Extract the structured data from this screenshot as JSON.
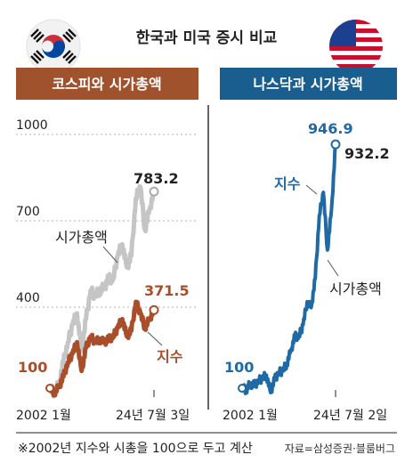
{
  "title": "한국과 미국 증시 비교",
  "footnote": "※2002년 지수와 시총을 100으로 두고 계산",
  "source": "자료=삼성증권·블룸버그",
  "colors": {
    "kr_band": "#a0522d",
    "us_band": "#1a5d8f",
    "kr_index": "#a84e2a",
    "kr_cap": "#c5c5c5",
    "us_line": "#1f6aa5",
    "dark_text": "#222222"
  },
  "chart_data": [
    {
      "type": "line",
      "title": "코스피와 시가총액",
      "flag": "south-korea-flag",
      "x_labels": [
        "2002 1월",
        "24년 7월 3일"
      ],
      "x": [
        "2002-01",
        "2003-01",
        "2004-01",
        "2005-01",
        "2006-01",
        "2007-01",
        "2008-01",
        "2009-01",
        "2010-01",
        "2011-01",
        "2012-01",
        "2013-01",
        "2014-01",
        "2015-01",
        "2016-01",
        "2017-01",
        "2018-01",
        "2019-01",
        "2020-01",
        "2021-01",
        "2022-01",
        "2023-01",
        "2024-01",
        "2024-07-03"
      ],
      "yticks": [
        1000,
        700,
        400
      ],
      "ylim": [
        100,
        1000
      ],
      "grid": false,
      "series": [
        {
          "name": "시가총액",
          "values": [
            100,
            85,
            115,
            190,
            260,
            320,
            360,
            230,
            340,
            440,
            420,
            440,
            450,
            480,
            480,
            560,
            600,
            520,
            560,
            760,
            800,
            650,
            720,
            783.2
          ],
          "end_label": "783.2"
        },
        {
          "name": "지수",
          "values": [
            100,
            85,
            105,
            140,
            190,
            220,
            260,
            160,
            240,
            280,
            260,
            270,
            260,
            270,
            280,
            310,
            340,
            280,
            300,
            400,
            360,
            310,
            340,
            371.5
          ],
          "end_label": "371.5"
        }
      ],
      "start_label": "100"
    },
    {
      "type": "line",
      "title": "나스닥과 시가총액",
      "flag": "us-flag",
      "x_labels": [
        "2002 1월",
        "24년 7월 2일"
      ],
      "x": [
        "2002-01",
        "2003-01",
        "2004-01",
        "2005-01",
        "2006-01",
        "2007-01",
        "2008-01",
        "2009-01",
        "2010-01",
        "2011-01",
        "2012-01",
        "2013-01",
        "2014-01",
        "2015-01",
        "2016-01",
        "2017-01",
        "2018-01",
        "2019-01",
        "2020-01",
        "2021-01",
        "2022-01",
        "2023-01",
        "2024-01",
        "2024-07-02"
      ],
      "ylim": [
        100,
        1000
      ],
      "series": [
        {
          "name": "지수",
          "values": [
            100,
            95,
            115,
            110,
            125,
            135,
            145,
            85,
            130,
            155,
            160,
            185,
            230,
            280,
            280,
            320,
            400,
            380,
            480,
            700,
            780,
            580,
            720,
            946.9
          ],
          "end_label": "946.9"
        },
        {
          "name": "시가총액",
          "values": [
            100,
            95,
            113,
            108,
            122,
            132,
            142,
            83,
            128,
            152,
            158,
            182,
            226,
            276,
            276,
            315,
            395,
            375,
            470,
            690,
            770,
            570,
            710,
            932.2
          ],
          "end_label": "932.2"
        }
      ],
      "start_label": "100"
    }
  ]
}
